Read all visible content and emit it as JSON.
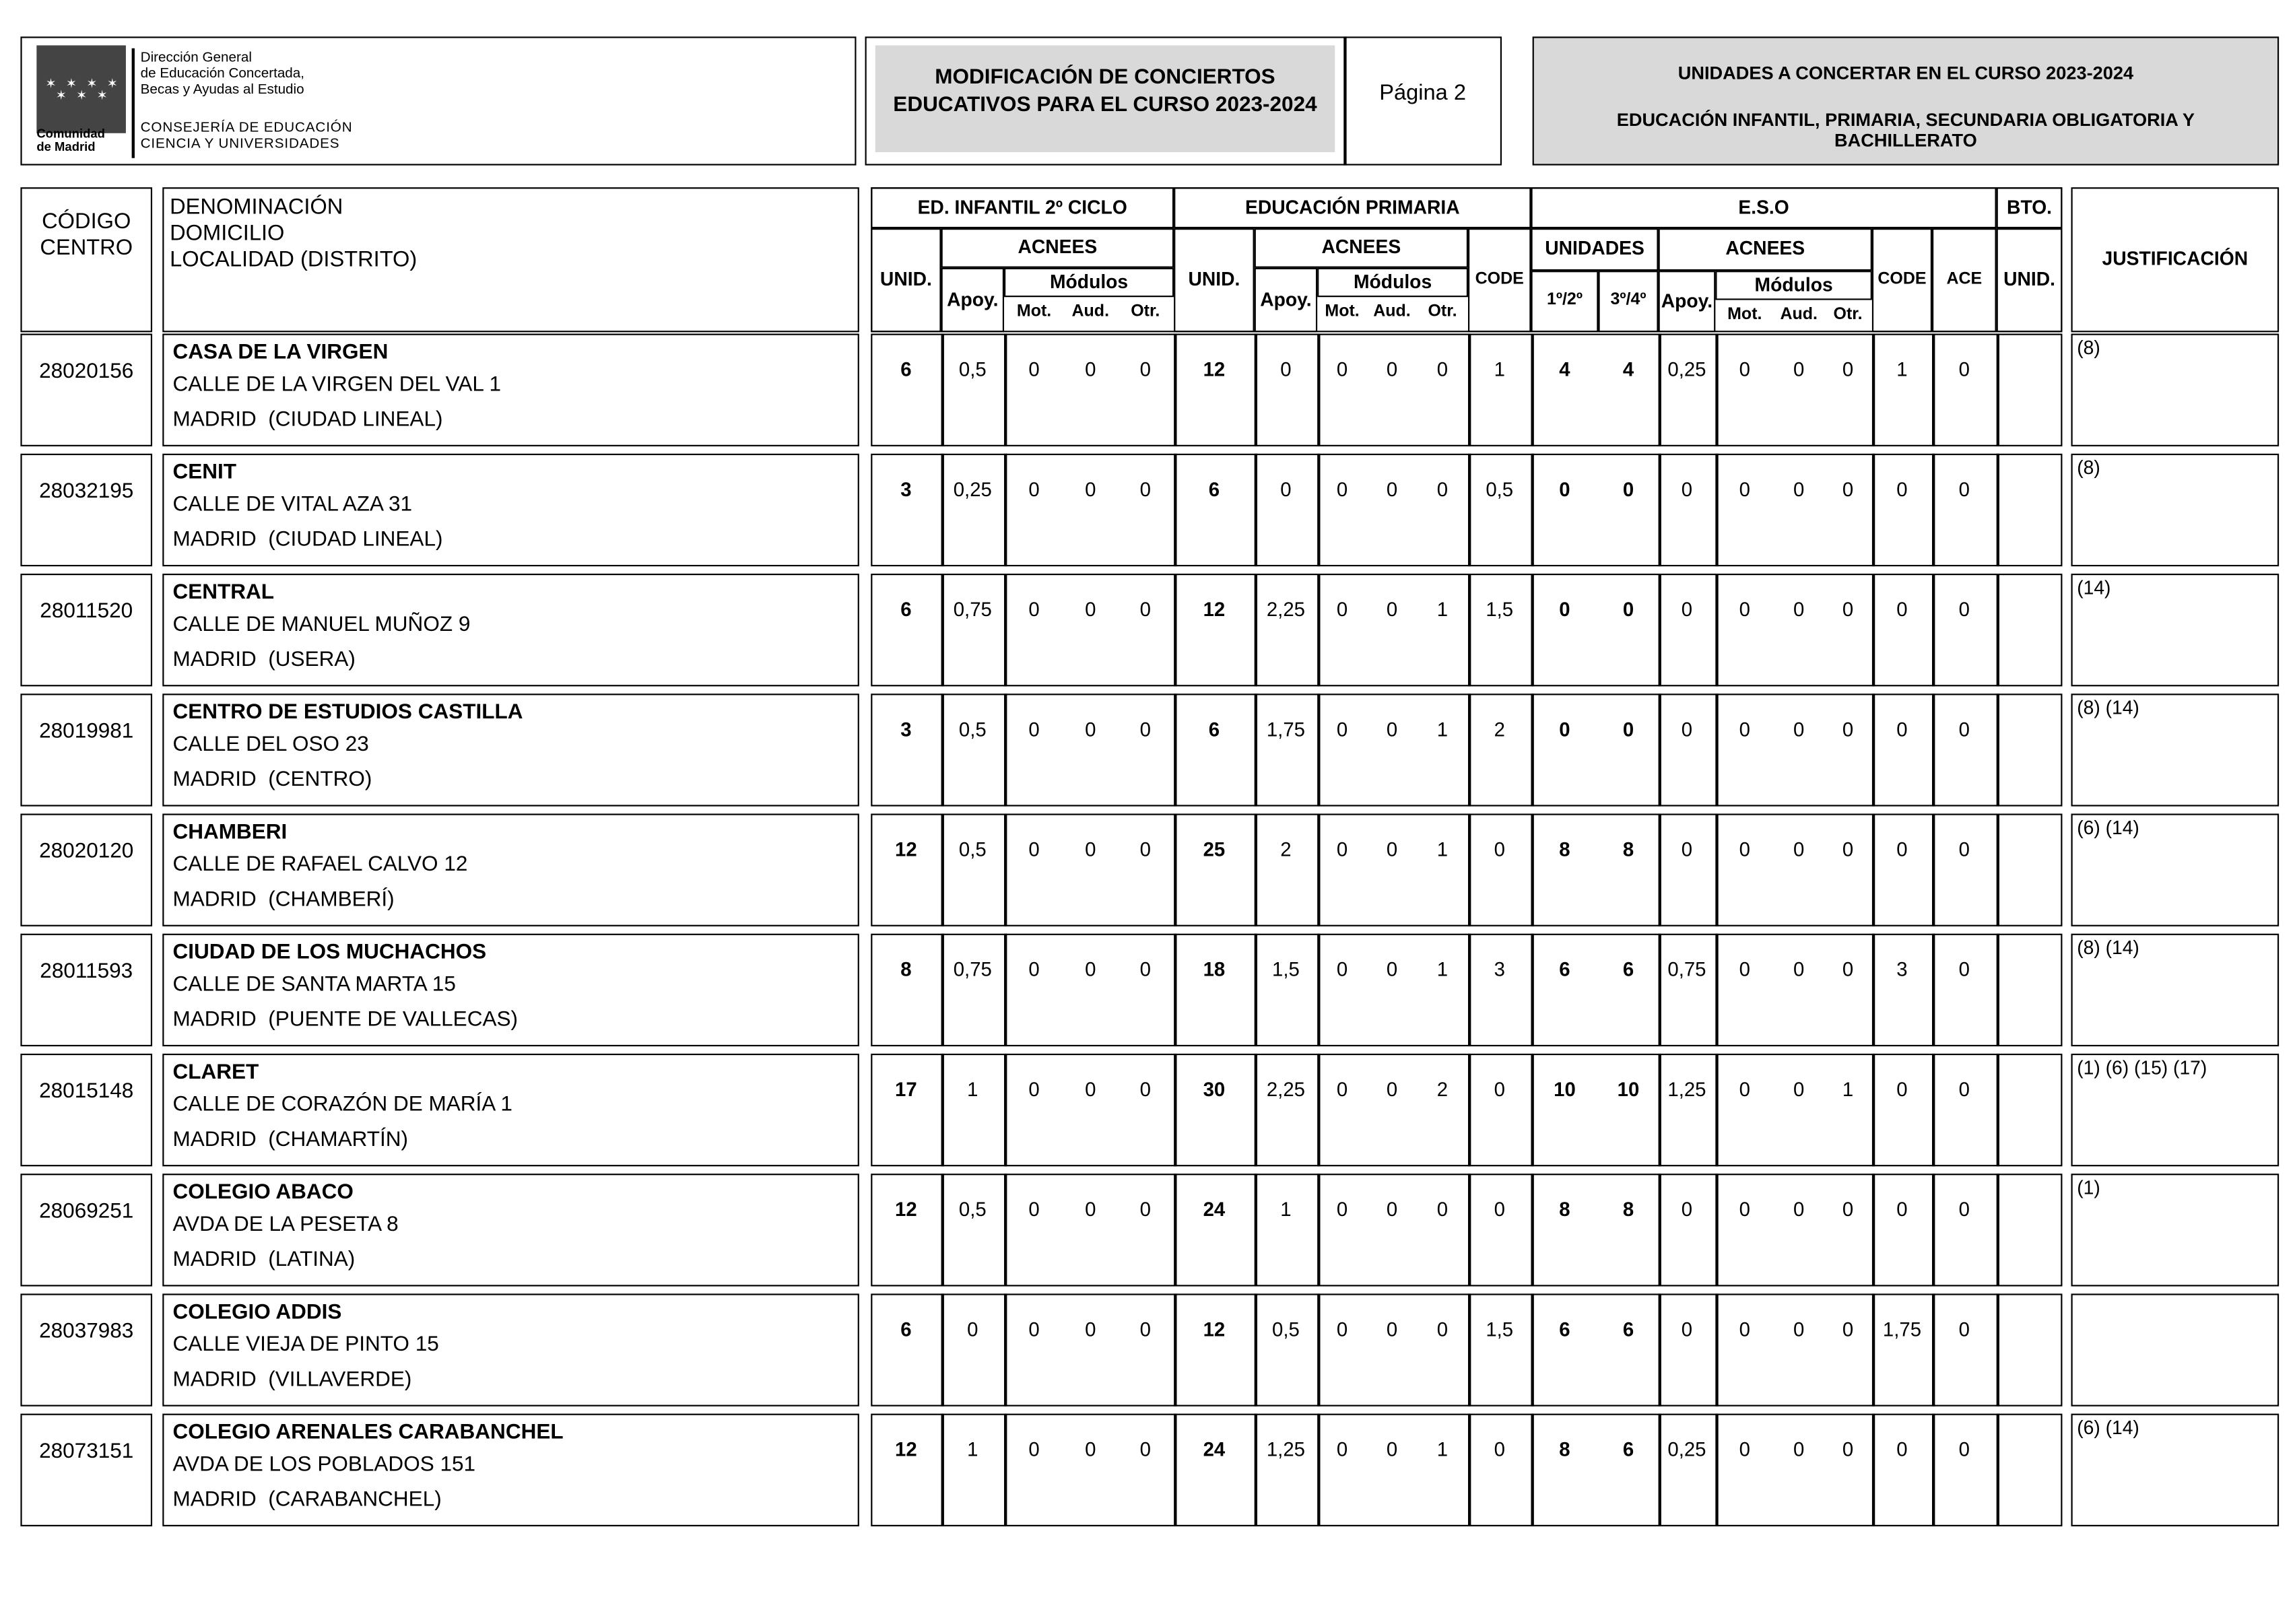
{
  "header": {
    "logo": [
      "Comunidad",
      "de Madrid"
    ],
    "org": [
      "Dirección General",
      "de Educación Concertada,",
      "Becas y Ayudas al Estudio"
    ],
    "department": [
      "CONSEJERÍA DE EDUCACIÓN",
      "CIENCIA Y UNIVERSIDADES"
    ],
    "title": [
      "MODIFICACIÓN DE CONCIERTOS",
      "EDUCATIVOS PARA EL CURSO 2023-2024"
    ],
    "page": "Página 2",
    "right": [
      "UNIDADES A CONCERTAR EN EL CURSO 2023-2024",
      "EDUCACIÓN INFANTIL, PRIMARIA, SECUNDARIA OBLIGATORIA Y BACHILLERATO"
    ]
  },
  "table": {
    "code_header": [
      "CÓDIGO",
      "CENTRO"
    ],
    "name_header": [
      "DENOMINACIÓN",
      "DOMICILIO",
      "LOCALIDAD (DISTRITO)"
    ],
    "header_cells": [
      "ED. INFANTIL 2º CICLO",
      "EDUCACIÓN PRIMARIA",
      "E.S.O",
      "BTO.",
      "UNID.",
      "ACNEES",
      "Apoy.",
      "Módulos",
      "Mot.",
      "Aud.",
      "Otr.",
      "UNID.",
      "ACNEES",
      "Apoy.",
      "Módulos",
      "Mot.",
      "Aud.",
      "Otr.",
      "CODE",
      "UNIDADES",
      "1º/2º",
      "3º/4º",
      "ACNEES",
      "Apoy.",
      "Módulos",
      "Mot.",
      "Aud.",
      "Otr.",
      "CODE",
      "ACE",
      "UNID.",
      "JUSTIFICACIÓN"
    ],
    "rows": [
      {
        "code": "28020156",
        "name": "CASA DE LA VIRGEN",
        "address": "CALLE DE LA VIRGEN DEL VAL 1",
        "locality": "MADRID  (CIUDAD LINEAL)",
        "values": [
          "6",
          "0,5",
          "0",
          "0",
          "0",
          "12",
          "0",
          "0",
          "0",
          "0",
          "1",
          "4",
          "4",
          "0,25",
          "0",
          "0",
          "0",
          "1",
          "0"
        ],
        "justification": "(8)"
      },
      {
        "code": "28032195",
        "name": "CENIT",
        "address": "CALLE DE VITAL AZA 31",
        "locality": "MADRID  (CIUDAD LINEAL)",
        "values": [
          "3",
          "0,25",
          "0",
          "0",
          "0",
          "6",
          "0",
          "0",
          "0",
          "0",
          "0,5",
          "0",
          "0",
          "0",
          "0",
          "0",
          "0",
          "0",
          "0"
        ],
        "justification": "(8)"
      },
      {
        "code": "28011520",
        "name": "CENTRAL",
        "address": "CALLE DE MANUEL MUÑOZ 9",
        "locality": "MADRID  (USERA)",
        "values": [
          "6",
          "0,75",
          "0",
          "0",
          "0",
          "12",
          "2,25",
          "0",
          "0",
          "1",
          "1,5",
          "0",
          "0",
          "0",
          "0",
          "0",
          "0",
          "0",
          "0"
        ],
        "justification": "(14)"
      },
      {
        "code": "28019981",
        "name": "CENTRO DE ESTUDIOS CASTILLA",
        "address": "CALLE DEL OSO 23",
        "locality": "MADRID  (CENTRO)",
        "values": [
          "3",
          "0,5",
          "0",
          "0",
          "0",
          "6",
          "1,75",
          "0",
          "0",
          "1",
          "2",
          "0",
          "0",
          "0",
          "0",
          "0",
          "0",
          "0",
          "0"
        ],
        "justification": "(8) (14)"
      },
      {
        "code": "28020120",
        "name": "CHAMBERI",
        "address": "CALLE DE RAFAEL CALVO 12",
        "locality": "MADRID  (CHAMBERÍ)",
        "values": [
          "12",
          "0,5",
          "0",
          "0",
          "0",
          "25",
          "2",
          "0",
          "0",
          "1",
          "0",
          "8",
          "8",
          "0",
          "0",
          "0",
          "0",
          "0",
          "0"
        ],
        "justification": "(6) (14)"
      },
      {
        "code": "28011593",
        "name": "CIUDAD DE LOS MUCHACHOS",
        "address": "CALLE DE SANTA MARTA 15",
        "locality": "MADRID  (PUENTE DE VALLECAS)",
        "values": [
          "8",
          "0,75",
          "0",
          "0",
          "0",
          "18",
          "1,5",
          "0",
          "0",
          "1",
          "3",
          "6",
          "6",
          "0,75",
          "0",
          "0",
          "0",
          "3",
          "0"
        ],
        "justification": "(8) (14)"
      },
      {
        "code": "28015148",
        "name": "CLARET",
        "address": "CALLE DE CORAZÓN DE MARÍA 1",
        "locality": "MADRID  (CHAMARTÍN)",
        "values": [
          "17",
          "1",
          "0",
          "0",
          "0",
          "30",
          "2,25",
          "0",
          "0",
          "2",
          "0",
          "10",
          "10",
          "1,25",
          "0",
          "0",
          "1",
          "0",
          "0"
        ],
        "justification": "(1) (6) (15) (17)"
      },
      {
        "code": "28069251",
        "name": "COLEGIO ABACO",
        "address": "AVDA DE LA PESETA 8",
        "locality": "MADRID  (LATINA)",
        "values": [
          "12",
          "0,5",
          "0",
          "0",
          "0",
          "24",
          "1",
          "0",
          "0",
          "0",
          "0",
          "8",
          "8",
          "0",
          "0",
          "0",
          "0",
          "0",
          "0"
        ],
        "justification": "(1)"
      },
      {
        "code": "28037983",
        "name": "COLEGIO ADDIS",
        "address": "CALLE VIEJA DE PINTO 15",
        "locality": "MADRID  (VILLAVERDE)",
        "values": [
          "6",
          "0",
          "0",
          "0",
          "0",
          "12",
          "0,5",
          "0",
          "0",
          "0",
          "1,5",
          "6",
          "6",
          "0",
          "0",
          "0",
          "0",
          "1,75",
          "0"
        ]
      },
      {
        "code": "28073151",
        "name": "COLEGIO ARENALES CARABANCHEL",
        "address": "AVDA DE LOS POBLADOS 151",
        "locality": "MADRID  (CARABANCHEL)",
        "values": [
          "12",
          "1",
          "0",
          "0",
          "0",
          "24",
          "1,25",
          "0",
          "0",
          "1",
          "0",
          "8",
          "6",
          "0,25",
          "0",
          "0",
          "0",
          "0",
          "0"
        ],
        "justification": "(6) (14)"
      }
    ]
  }
}
